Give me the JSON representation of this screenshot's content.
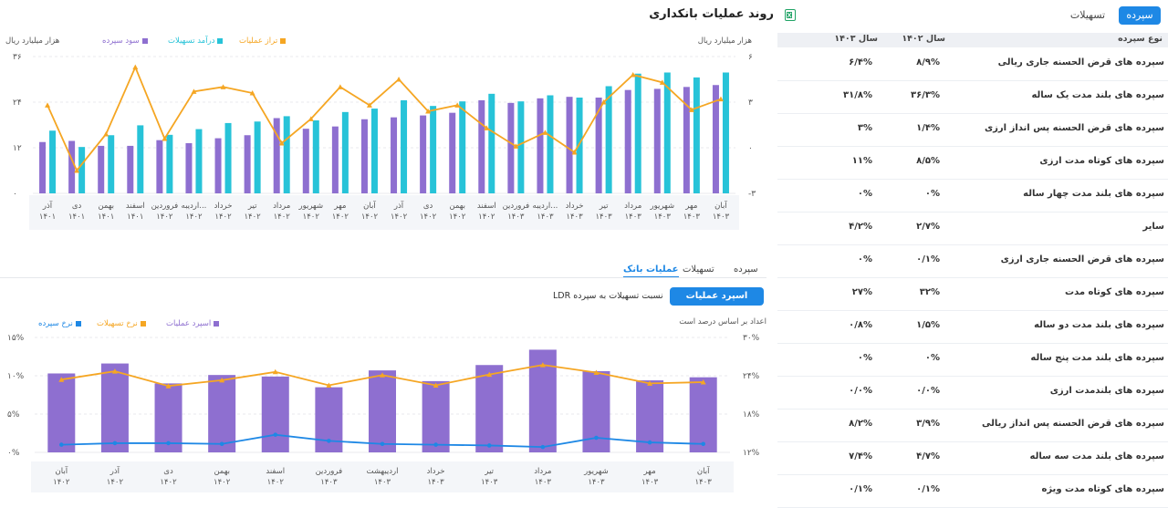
{
  "header": {
    "title": "روند عملیات بانکداری"
  },
  "top_chart": {
    "left_axis_label": "هزار میلیارد ریال",
    "right_axis_label": "هزار میلیارد ریال",
    "legend": {
      "deposit_profit": "سود سپرده",
      "facility_income": "درآمد تسهیلات",
      "balance": "تراز عملیات"
    },
    "colors": {
      "deposit_profit": "#8e6fd0",
      "facility_income": "#27c3d8",
      "balance": "#f5a623"
    }
  },
  "middle_tabs": {
    "deposits": "سپرده",
    "facilities": "تسهیلات",
    "bank_ops": "عملیات بانک"
  },
  "bottom_chart": {
    "button": "اسپرد عملیات بانکداری",
    "ldr_label": "نسبت تسهیلات به سپرده LDR",
    "note": "اعداد بر اساس درصد است",
    "legend": {
      "spread": "اسپرد عملیات",
      "facility_rate": "نرخ تسهیلات",
      "deposit_rate": "نرخ سپرده"
    },
    "colors": {
      "spread": "#8e6fd0",
      "facility_rate": "#f5a623",
      "deposit_rate": "#1e88e5"
    }
  },
  "right_panel": {
    "tab_deposits": "سپرده",
    "tab_facilities": "تسهیلات",
    "columns": {
      "name": "نوع سپرده",
      "y1402": "سال ۱۴۰۲",
      "y1403": "سال ۱۴۰۳"
    },
    "rows": [
      {
        "name": "سپرده های قرض الحسنه جاری ریالی",
        "y1402": "۸/۹%",
        "y1403": "۶/۴%"
      },
      {
        "name": "سپرده های بلند مدت یک ساله",
        "y1402": "۳۶/۳%",
        "y1403": "۳۱/۸%"
      },
      {
        "name": "سپرده های قرض الحسنه پس انداز ارزی",
        "y1402": "۱/۴%",
        "y1403": "۳%"
      },
      {
        "name": "سپرده های کوتاه مدت ارزی",
        "y1402": "۸/۵%",
        "y1403": "۱۱%"
      },
      {
        "name": "سپرده های بلند مدت چهار ساله",
        "y1402": "۰%",
        "y1403": "۰%"
      },
      {
        "name": "سایر",
        "y1402": "۲/۷%",
        "y1403": "۴/۲%"
      },
      {
        "name": "سپرده های قرض الحسنه جاری ارزی",
        "y1402": "۰/۱%",
        "y1403": "۰%"
      },
      {
        "name": "سپرده های کوتاه مدت",
        "y1402": "۳۲%",
        "y1403": "۲۷%"
      },
      {
        "name": "سپرده های بلند مدت دو ساله",
        "y1402": "۱/۵%",
        "y1403": "۰/۸%"
      },
      {
        "name": "سپرده های بلند مدت پنج ساله",
        "y1402": "۰%",
        "y1403": "۰%"
      },
      {
        "name": "سپرده های بلندمدت ارزی",
        "y1402": "۰/۰%",
        "y1403": "۰/۰%"
      },
      {
        "name": "سپرده های قرض الحسنه پس انداز ریالی",
        "y1402": "۳/۹%",
        "y1403": "۸/۲%"
      },
      {
        "name": "سپرده های بلند مدت سه ساله",
        "y1402": "۴/۷%",
        "y1403": "۷/۴%"
      },
      {
        "name": "سپرده های کوتاه مدت ویژه",
        "y1402": "۰/۱%",
        "y1403": "۰/۱%"
      }
    ]
  },
  "chart_data": [
    {
      "type": "bar",
      "title": "روند عملیات بانکداری",
      "categories": [
        "آذر ۱۴۰۱",
        "دی ۱۴۰۱",
        "بهمن ۱۴۰۱",
        "اسفند ۱۴۰۱",
        "فروردین ۱۴۰۲",
        "اردیبه... ۱۴۰۲",
        "خرداد ۱۴۰۲",
        "تیر ۱۴۰۲",
        "مرداد ۱۴۰۲",
        "شهریور ۱۴۰۲",
        "مهر ۱۴۰۲",
        "آبان ۱۴۰۲",
        "آذر ۱۴۰۲",
        "دی ۱۴۰۲",
        "بهمن ۱۴۰۲",
        "اسفند ۱۴۰۲",
        "فروردین ۱۴۰۳",
        "اردیبه... ۱۴۰۳",
        "خرداد ۱۴۰۳",
        "تیر ۱۴۰۳",
        "مرداد ۱۴۰۳",
        "شهریور ۱۴۰۳",
        "مهر ۱۴۰۳",
        "آبان ۱۴۰۳"
      ],
      "ylabel_left": "هزار میلیارد ریال",
      "ylabel_right": "هزار میلیارد ریال",
      "ylim_left": [
        0,
        36
      ],
      "yticks_left": [
        "۰",
        "۱۲",
        "۲۴",
        "۳۶"
      ],
      "ylim_right": [
        -3,
        6
      ],
      "yticks_right": [
        "-۳",
        "۰",
        "۳",
        "۶"
      ],
      "series": [
        {
          "name": "سود سپرده",
          "axis": "left",
          "kind": "bar",
          "values": [
            13.5,
            13.8,
            12.5,
            12.5,
            14,
            13.2,
            14.5,
            15.3,
            19.8,
            17,
            17.6,
            19.5,
            20,
            20.5,
            21.2,
            24.5,
            23.8,
            25,
            25.4,
            25.2,
            27.2,
            27.5,
            28,
            28.5
          ]
        },
        {
          "name": "درآمد تسهیلات",
          "axis": "left",
          "kind": "bar",
          "values": [
            16.5,
            12.2,
            15.3,
            17.9,
            15.4,
            16.9,
            18.5,
            18.9,
            20.3,
            19.2,
            21.4,
            22.3,
            24.5,
            23,
            24.2,
            26.2,
            24.2,
            25.8,
            25.2,
            28.2,
            31.5,
            31.8,
            30.5,
            31.8
          ]
        },
        {
          "name": "تراز عملیات",
          "axis": "right",
          "kind": "line",
          "values": [
            2.8,
            -1.5,
            0.9,
            5.3,
            0.6,
            3.7,
            4.0,
            3.6,
            0.3,
            1.9,
            4.0,
            2.8,
            4.5,
            2.4,
            2.8,
            1.3,
            0.1,
            1.0,
            -0.3,
            3.0,
            4.8,
            4.3,
            2.5,
            3.2
          ]
        }
      ]
    },
    {
      "type": "bar",
      "title": "اسپرد عملیات بانکداری",
      "categories": [
        "آبان ۱۴۰۲",
        "آذر ۱۴۰۲",
        "دی ۱۴۰۲",
        "بهمن ۱۴۰۲",
        "اسفند ۱۴۰۲",
        "فروردین ۱۴۰۳",
        "اردیبهشت ۱۴۰۳",
        "خرداد ۱۴۰۳",
        "تیر ۱۴۰۳",
        "مرداد ۱۴۰۳",
        "شهریور ۱۴۰۳",
        "مهر ۱۴۰۳",
        "آبان ۱۴۰۳"
      ],
      "ylim_left": [
        0,
        15
      ],
      "yticks_left": [
        "۰%",
        "۵%",
        "۱۰%",
        "۱۵%"
      ],
      "ylim_right": [
        12,
        30
      ],
      "yticks_right": [
        "۱۲%",
        "۱۸%",
        "۲۴%",
        "۳۰%"
      ],
      "series": [
        {
          "name": "اسپرد عملیات",
          "axis": "left",
          "kind": "bar",
          "values": [
            10.3,
            11.6,
            9.0,
            10.1,
            9.9,
            8.5,
            10.7,
            9.3,
            11.4,
            13.4,
            10.6,
            9.4,
            9.8
          ]
        },
        {
          "name": "نرخ تسهیلات",
          "axis": "right",
          "kind": "line",
          "values": [
            23.4,
            24.7,
            22.4,
            23.3,
            24.6,
            22.5,
            24.1,
            22.5,
            24.2,
            25.7,
            24.5,
            22.8,
            23.0
          ]
        },
        {
          "name": "نرخ سپرده",
          "axis": "left",
          "kind": "line",
          "values": [
            1.0,
            1.2,
            1.2,
            1.1,
            2.3,
            1.5,
            1.1,
            1.0,
            0.9,
            0.7,
            1.9,
            1.3,
            1.1
          ]
        }
      ]
    }
  ]
}
